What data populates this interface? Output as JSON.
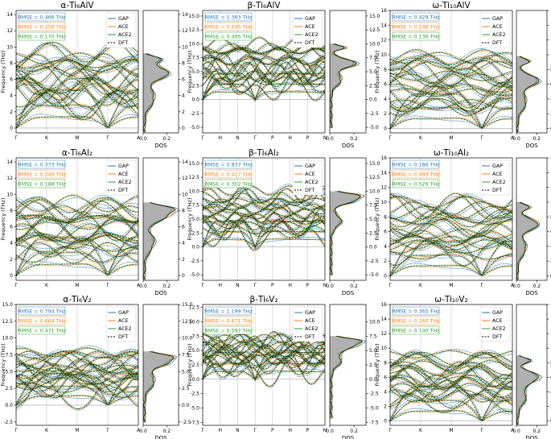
{
  "colors": {
    "GAP": "#1f77b4",
    "ACE": "#ff7f0e",
    "ACE2": "#2ca02c",
    "DFT": "#000000",
    "dos_fill": "#b0b0b0"
  },
  "legend": [
    "GAP",
    "ACE",
    "ACE2",
    "DFT"
  ],
  "chart_data": [
    {
      "type": "line",
      "title": "α-Ti₆AlV",
      "xlabel": "",
      "ylabel": "Frequency (THz)",
      "ylim": [
        -0.6,
        14.5
      ],
      "xticks": [
        "Γ",
        "K",
        "M",
        "Γ",
        "A"
      ],
      "yticks": [
        0,
        2,
        4,
        6,
        8,
        10,
        12,
        14
      ],
      "rmse": [
        {
          "model": "GAP",
          "value": "RMSE = 0.466 THz"
        },
        {
          "model": "ACE",
          "value": "RMSE = 0.258 THz"
        },
        {
          "model": "ACE2",
          "value": "RMSE = 0.170 THz"
        }
      ],
      "dos": {
        "xlabel": "DOS",
        "xticks": [
          "0.0",
          "0.2"
        ],
        "yticks": [
          0,
          2,
          4,
          6,
          8,
          10,
          12,
          14
        ],
        "ylim": [
          -0.6,
          14.5
        ],
        "peak": 6.8,
        "vmax": 9.2
      }
    },
    {
      "type": "line",
      "title": "β-Ti₆AlV",
      "xlabel": "",
      "ylabel": "Frequency (THz)",
      "ylim": [
        -6,
        16
      ],
      "xticks": [
        "Γ",
        "H",
        "N",
        "Γ",
        "P",
        "H",
        "P",
        "N"
      ],
      "yticks": [
        -5.0,
        -2.5,
        0.0,
        2.5,
        5.0,
        7.5,
        10.0,
        12.5,
        15.0
      ],
      "rmse": [
        {
          "model": "GAP",
          "value": "RMSE = 1.363 THz"
        },
        {
          "model": "ACE",
          "value": "RMSE = 0.645 THz"
        },
        {
          "model": "ACE2",
          "value": "RMSE = 0.495 THz"
        }
      ],
      "dos": {
        "xlabel": "DOS",
        "xticks": [
          "0.0",
          "0.2"
        ],
        "yticks": [
          -5.0,
          -2.5,
          0.0,
          2.5,
          5.0,
          7.5,
          10.0,
          12.5,
          15.0
        ],
        "ylim": [
          -6,
          16
        ],
        "peak": 6.5,
        "vmax": 10.0
      }
    },
    {
      "type": "line",
      "title": "ω-Ti₁₀AlV",
      "xlabel": "",
      "ylabel": "Frequency (THz)",
      "ylim": [
        -0.6,
        16
      ],
      "xticks": [
        "Γ",
        "K",
        "M",
        "Γ",
        "A"
      ],
      "yticks": [
        0,
        2,
        4,
        6,
        8,
        10,
        12,
        14,
        16
      ],
      "rmse": [
        {
          "model": "GAP",
          "value": "RMSE = 0.429 THz"
        },
        {
          "model": "ACE",
          "value": "RMSE = 0.248 THz"
        },
        {
          "model": "ACE2",
          "value": "RMSE = 0.136 THz"
        }
      ],
      "dos": {
        "xlabel": "DOS",
        "xticks": [
          "0.0",
          "0.2"
        ],
        "yticks": [
          0,
          2,
          4,
          6,
          8,
          10,
          12,
          14,
          16
        ],
        "ylim": [
          -0.6,
          16
        ],
        "peak": 6.5,
        "vmax": 9.8
      }
    },
    {
      "type": "line",
      "title": "α-Ti₆Al₂",
      "xlabel": "",
      "ylabel": "Frequency (THz)",
      "ylim": [
        -0.6,
        14.5
      ],
      "xticks": [
        "Γ",
        "K",
        "M",
        "Γ",
        "A"
      ],
      "yticks": [
        0,
        2,
        4,
        6,
        8,
        10,
        12,
        14
      ],
      "rmse": [
        {
          "model": "GAP",
          "value": "RMSE = 0.373 THz"
        },
        {
          "model": "ACE",
          "value": "RMSE = 0.249 THz"
        },
        {
          "model": "ACE2",
          "value": "RMSE = 0.188 THz"
        }
      ],
      "dos": {
        "xlabel": "DOS",
        "xticks": [
          "0.0",
          "0.2"
        ],
        "yticks": [
          0,
          2,
          4,
          6,
          8,
          10,
          12,
          14
        ],
        "ylim": [
          -0.6,
          14.5
        ],
        "peak": 7.5,
        "vmax": 9.0
      }
    },
    {
      "type": "line",
      "title": "β-Ti₆Al₂",
      "xlabel": "",
      "ylabel": "Frequency (THz)",
      "ylim": [
        -6,
        16
      ],
      "xticks": [
        "Γ",
        "H",
        "N",
        "Γ",
        "P",
        "H",
        "P",
        "N"
      ],
      "yticks": [
        -5.0,
        -2.5,
        0.0,
        2.5,
        5.0,
        7.5,
        10.0,
        12.5,
        15.0
      ],
      "rmse": [
        {
          "model": "GAP",
          "value": "RMSE = 0.837 THz"
        },
        {
          "model": "ACE",
          "value": "RMSE = 0.427 THz"
        },
        {
          "model": "ACE2",
          "value": "RMSE = 0.302 THz"
        }
      ],
      "dos": {
        "xlabel": "DOS",
        "xticks": [
          "0.0",
          "0.2"
        ],
        "yticks": [
          -5.0,
          -2.5,
          0.0,
          2.5,
          5.0,
          7.5,
          10.0,
          12.5,
          15.0
        ],
        "ylim": [
          -6,
          16
        ],
        "peak": 8.5,
        "vmax": 10.0
      }
    },
    {
      "type": "line",
      "title": "ω-Ti₁₀Al₂",
      "xlabel": "",
      "ylabel": "Frequency (THz)",
      "ylim": [
        -0.6,
        16
      ],
      "xticks": [
        "Γ",
        "K",
        "M",
        "Γ",
        "A"
      ],
      "yticks": [
        0,
        2,
        4,
        6,
        8,
        10,
        12,
        14,
        16
      ],
      "rmse": [
        {
          "model": "GAP",
          "value": "RMSE = 0.186 THz"
        },
        {
          "model": "ACE",
          "value": "RMSE = 0.499 THz"
        },
        {
          "model": "ACE2",
          "value": "RMSE = 0.529 THz"
        }
      ],
      "dos": {
        "xlabel": "DOS",
        "xticks": [
          "0.0",
          "0.2"
        ],
        "yticks": [
          0,
          2,
          4,
          6,
          8,
          10,
          12,
          14,
          16
        ],
        "ylim": [
          -0.6,
          16
        ],
        "peak": 7.0,
        "vmax": 10.0
      }
    },
    {
      "type": "line",
      "title": "α-Ti₆V₂",
      "xlabel": "",
      "ylabel": "Frequency (THz)",
      "ylim": [
        -3,
        15
      ],
      "xticks": [
        "Γ",
        "K",
        "M",
        "Γ",
        "A"
      ],
      "yticks": [
        -2.5,
        0.0,
        2.5,
        5.0,
        7.5,
        10.0,
        12.5,
        15.0
      ],
      "rmse": [
        {
          "model": "GAP",
          "value": "RMSE = 0.794 THz"
        },
        {
          "model": "ACE",
          "value": "RMSE = 0.664 THz"
        },
        {
          "model": "ACE2",
          "value": "RMSE = 0.471 THz"
        }
      ],
      "dos": {
        "xlabel": "DOS",
        "xticks": [
          "0.0",
          "0.2"
        ],
        "yticks": [
          -2.5,
          0.0,
          2.5,
          5.0,
          7.5,
          10.0,
          12.5,
          15.0
        ],
        "ylim": [
          -3,
          15
        ],
        "peak": 6.5,
        "vmax": 8.0
      }
    },
    {
      "type": "line",
      "title": "β-Ti₆V₂",
      "xlabel": "",
      "ylabel": "Frequency (THz)",
      "ylim": [
        -8,
        13
      ],
      "xticks": [
        "Γ",
        "H",
        "N",
        "Γ",
        "P",
        "H",
        "P",
        "N"
      ],
      "yticks": [
        -7.5,
        -5.0,
        -2.5,
        0.0,
        2.5,
        5.0,
        7.5,
        10.0,
        12.5
      ],
      "rmse": [
        {
          "model": "GAP",
          "value": "RMSE = 1.199 THz"
        },
        {
          "model": "ACE",
          "value": "RMSE = 0.671 THz"
        },
        {
          "model": "ACE2",
          "value": "RMSE = 0.597 THz"
        }
      ],
      "dos": {
        "xlabel": "DOS",
        "xticks": [
          "0.0",
          "0.2"
        ],
        "yticks": [
          -7.5,
          -5.0,
          -2.5,
          0.0,
          2.5,
          5.0,
          7.5,
          10.0
        ],
        "ylim": [
          -8,
          13
        ],
        "peak": 6.0,
        "vmax": 7.5
      }
    },
    {
      "type": "line",
      "title": "ω-Ti₁₀V₂",
      "xlabel": "",
      "ylabel": "Frequency (THz)",
      "ylim": [
        -0.6,
        16
      ],
      "xticks": [
        "Γ",
        "K",
        "M",
        "Γ",
        "A"
      ],
      "yticks": [
        0,
        2,
        4,
        6,
        8,
        10,
        12,
        14,
        16
      ],
      "rmse": [
        {
          "model": "GAP",
          "value": "RMSE = 0.365 THz"
        },
        {
          "model": "ACE",
          "value": "RMSE = 0.260 THz"
        },
        {
          "model": "ACE2",
          "value": "RMSE = 0.140 THz"
        }
      ],
      "dos": {
        "xlabel": "DOS",
        "xticks": [
          "0.0",
          "0.2"
        ],
        "yticks": [
          0,
          2,
          4,
          6,
          8,
          10,
          12,
          14,
          16
        ],
        "ylim": [
          -0.6,
          16
        ],
        "peak": 6.0,
        "vmax": 9.0
      }
    }
  ]
}
